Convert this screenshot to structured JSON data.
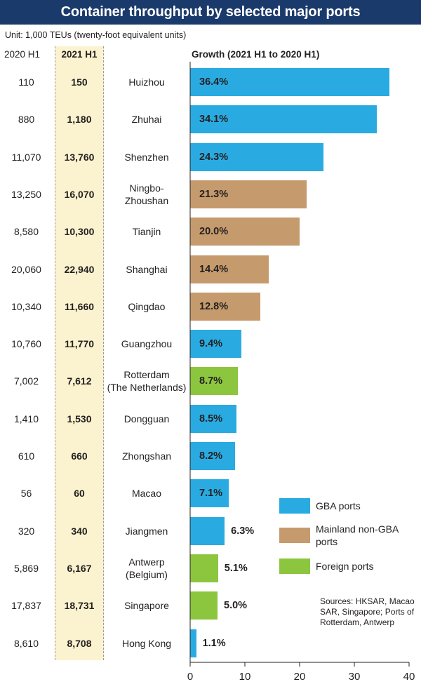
{
  "title": "Container throughput by selected major ports",
  "unit_note": "Unit: 1,000 TEUs (twenty-foot equivalent units)",
  "col_header_2020": "2020 H1",
  "col_header_2021": "2021 H1",
  "growth_header": "Growth (2021 H1 to 2020 H1)",
  "colors": {
    "gba": "#29abe2",
    "mainland": "#c59b6d",
    "foreign": "#8cc63f",
    "title_bg": "#1a3a6b",
    "highlight": "#fbf3cf"
  },
  "legend": [
    {
      "key": "gba",
      "label": "GBA ports"
    },
    {
      "key": "mainland",
      "label": "Mainland non-GBA ports"
    },
    {
      "key": "foreign",
      "label": "Foreign ports"
    }
  ],
  "sources": "Sources: HKSAR, Macao SAR, Singapore; Ports of Rotterdam, Antwerp",
  "chart_data": {
    "type": "bar",
    "orientation": "horizontal",
    "title": "Container throughput by selected major ports",
    "xlabel": "Growth (2021 H1 to 2020 H1)",
    "xlim": [
      0,
      40
    ],
    "xticks": [
      0,
      10,
      20,
      30,
      40
    ],
    "categories": [
      "Huizhou",
      "Zhuhai",
      "Shenzhen",
      "Ningbo-Zhoushan",
      "Tianjin",
      "Shanghai",
      "Qingdao",
      "Guangzhou",
      "Rotterdam (The Netherlands)",
      "Dongguan",
      "Zhongshan",
      "Macao",
      "Jiangmen",
      "Antwerp (Belgium)",
      "Singapore",
      "Hong Kong"
    ],
    "rows": [
      {
        "port": "Huizhou",
        "h1_2020": "110",
        "h1_2021": "150",
        "growth": 36.4,
        "growth_label": "36.4%",
        "group": "gba"
      },
      {
        "port": "Zhuhai",
        "h1_2020": "880",
        "h1_2021": "1,180",
        "growth": 34.1,
        "growth_label": "34.1%",
        "group": "gba"
      },
      {
        "port": "Shenzhen",
        "h1_2020": "11,070",
        "h1_2021": "13,760",
        "growth": 24.3,
        "growth_label": "24.3%",
        "group": "gba"
      },
      {
        "port": "Ningbo-\nZhoushan",
        "h1_2020": "13,250",
        "h1_2021": "16,070",
        "growth": 21.3,
        "growth_label": "21.3%",
        "group": "mainland"
      },
      {
        "port": "Tianjin",
        "h1_2020": "8,580",
        "h1_2021": "10,300",
        "growth": 20.0,
        "growth_label": "20.0%",
        "group": "mainland"
      },
      {
        "port": "Shanghai",
        "h1_2020": "20,060",
        "h1_2021": "22,940",
        "growth": 14.4,
        "growth_label": "14.4%",
        "group": "mainland"
      },
      {
        "port": "Qingdao",
        "h1_2020": "10,340",
        "h1_2021": "11,660",
        "growth": 12.8,
        "growth_label": "12.8%",
        "group": "mainland"
      },
      {
        "port": "Guangzhou",
        "h1_2020": "10,760",
        "h1_2021": "11,770",
        "growth": 9.4,
        "growth_label": "9.4%",
        "group": "gba"
      },
      {
        "port": "Rotterdam\n(The Netherlands)",
        "h1_2020": "7,002",
        "h1_2021": "7,612",
        "growth": 8.7,
        "growth_label": "8.7%",
        "group": "foreign"
      },
      {
        "port": "Dongguan",
        "h1_2020": "1,410",
        "h1_2021": "1,530",
        "growth": 8.5,
        "growth_label": "8.5%",
        "group": "gba"
      },
      {
        "port": "Zhongshan",
        "h1_2020": "610",
        "h1_2021": "660",
        "growth": 8.2,
        "growth_label": "8.2%",
        "group": "gba"
      },
      {
        "port": "Macao",
        "h1_2020": "56",
        "h1_2021": "60",
        "growth": 7.1,
        "growth_label": "7.1%",
        "group": "gba"
      },
      {
        "port": "Jiangmen",
        "h1_2020": "320",
        "h1_2021": "340",
        "growth": 6.3,
        "growth_label": "6.3%",
        "group": "gba"
      },
      {
        "port": "Antwerp\n(Belgium)",
        "h1_2020": "5,869",
        "h1_2021": "6,167",
        "growth": 5.1,
        "growth_label": "5.1%",
        "group": "foreign"
      },
      {
        "port": "Singapore",
        "h1_2020": "17,837",
        "h1_2021": "18,731",
        "growth": 5.0,
        "growth_label": "5.0%",
        "group": "foreign"
      },
      {
        "port": "Hong Kong",
        "h1_2020": "8,610",
        "h1_2021": "8,708",
        "growth": 1.1,
        "growth_label": "1.1%",
        "group": "gba"
      }
    ]
  }
}
